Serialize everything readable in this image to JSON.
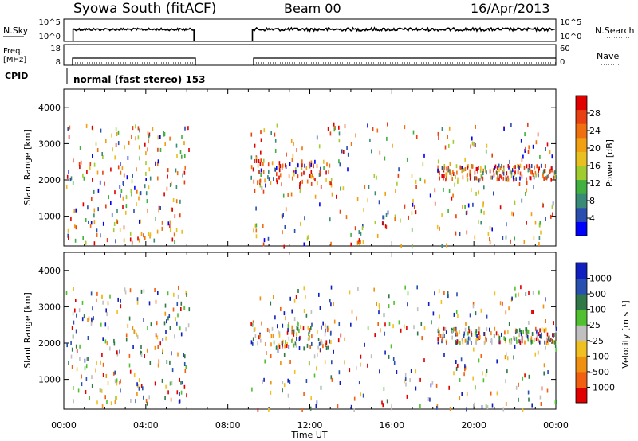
{
  "header": {
    "station": "Syowa South (fitACF)",
    "beam": "Beam 00",
    "date": "16/Apr/2013"
  },
  "panels": {
    "nsky": {
      "label": "N.Sky",
      "left_ticks": [
        "10^5",
        "10^0"
      ],
      "right_ticks": [
        "10^5",
        "10^0"
      ],
      "right_label": "N.Search"
    },
    "freq": {
      "label_line1": "Freq.",
      "label_line2": "[MHz]",
      "left_ticks": [
        "18",
        "8"
      ],
      "right_ticks": [
        "60",
        "0"
      ],
      "right_label": "Nave"
    },
    "cpid": {
      "label": "CPID",
      "text": "normal (fast stereo) 153"
    }
  },
  "colors": {
    "power_scale": [
      "#0000ff",
      "#2a4db0",
      "#3a8a78",
      "#40b040",
      "#a0cc30",
      "#e8c020",
      "#f0a010",
      "#f07010",
      "#e84010",
      "#e00000"
    ],
    "velocity_scale": [
      "#1020c0",
      "#2850b0",
      "#307848",
      "#50c030",
      "#c0c0c0",
      "#f0c020",
      "#f09010",
      "#f06010",
      "#e00000"
    ]
  },
  "chart_data": [
    {
      "type": "scatter",
      "name": "power",
      "ylabel": "Slant Range [km]",
      "xlabel": "Time UT",
      "xlim": [
        0,
        24
      ],
      "ylim": [
        180,
        4500
      ],
      "y_ticks": [
        1000,
        2000,
        3000,
        4000
      ],
      "x_ticks": [
        "00:00",
        "04:00",
        "08:00",
        "12:00",
        "16:00",
        "20:00",
        "00:00"
      ],
      "colorbar_label": "Power [dB]",
      "colorbar_ticks": [
        "28",
        "24",
        "20",
        "16",
        "12",
        "8",
        "4"
      ],
      "data_gaps": [
        [
          6.1,
          9.1
        ]
      ],
      "bands": [
        {
          "t0": 0.1,
          "t1": 6.1,
          "r0": 300,
          "r1": 3600,
          "n": 220
        },
        {
          "t0": 9.1,
          "t1": 24.0,
          "r0": 200,
          "r1": 3600,
          "n": 300
        },
        {
          "t0": 9.1,
          "t1": 13.0,
          "r0": 1900,
          "r1": 2600,
          "n": 90
        },
        {
          "t0": 18.2,
          "t1": 24.0,
          "r0": 2050,
          "r1": 2450,
          "n": 180
        }
      ]
    },
    {
      "type": "scatter",
      "name": "velocity",
      "ylabel": "Slant Range [km]",
      "xlabel": "Time UT",
      "xlim": [
        0,
        24
      ],
      "ylim": [
        180,
        4500
      ],
      "y_ticks": [
        1000,
        2000,
        3000,
        4000
      ],
      "x_ticks": [
        "00:00",
        "04:00",
        "08:00",
        "12:00",
        "16:00",
        "20:00",
        "00:00"
      ],
      "colorbar_label": "Velocity [m s⁻¹]",
      "colorbar_ticks": [
        "1000",
        "500",
        "100",
        "25",
        "-25",
        "-100",
        "-500",
        "-1000"
      ],
      "data_gaps": [
        [
          6.1,
          9.1
        ]
      ],
      "bands": [
        {
          "t0": 0.1,
          "t1": 6.1,
          "r0": 300,
          "r1": 3600,
          "n": 220
        },
        {
          "t0": 9.1,
          "t1": 24.0,
          "r0": 200,
          "r1": 3600,
          "n": 300
        },
        {
          "t0": 9.1,
          "t1": 13.0,
          "r0": 1900,
          "r1": 2600,
          "n": 90
        },
        {
          "t0": 18.2,
          "t1": 24.0,
          "r0": 2050,
          "r1": 2450,
          "n": 180
        }
      ]
    }
  ]
}
